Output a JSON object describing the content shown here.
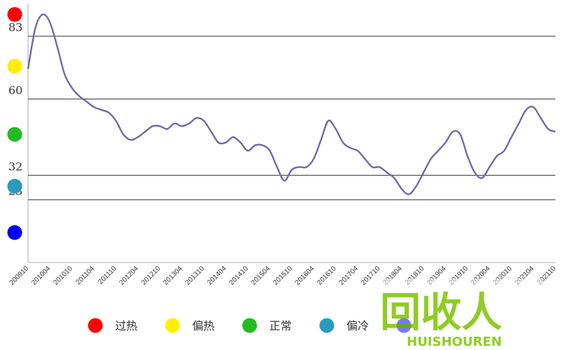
{
  "chart_data": {
    "type": "line",
    "title": "",
    "xlabel": "",
    "ylabel": "",
    "ylim": [
      0,
      95
    ],
    "x_ticks": [
      "200910",
      "201004",
      "201010",
      "201104",
      "201110",
      "201204",
      "201210",
      "201304",
      "201310",
      "201404",
      "201410",
      "201504",
      "201510",
      "201604",
      "201610",
      "201704",
      "201710",
      "201804",
      "201810",
      "201904",
      "201910",
      "202004",
      "202010",
      "202104",
      "202110"
    ],
    "y_ticks": [
      83,
      60,
      32,
      23
    ],
    "thresholds": [
      83,
      60,
      32,
      23
    ],
    "series": [
      {
        "name": "",
        "color": "#6b6ba5",
        "x": [
          "200910",
          "200912",
          "201002",
          "201004",
          "201006",
          "201008",
          "201010",
          "201012",
          "201102",
          "201104",
          "201106",
          "201108",
          "201110",
          "201112",
          "201202",
          "201204",
          "201206",
          "201208",
          "201210",
          "201212",
          "201302",
          "201304",
          "201306",
          "201308",
          "201310",
          "201312",
          "201402",
          "201404",
          "201406",
          "201408",
          "201410",
          "201412",
          "201502",
          "201504",
          "201506",
          "201508",
          "201510",
          "201512",
          "201602",
          "201604",
          "201606",
          "201608",
          "201610",
          "201612",
          "201702",
          "201704",
          "201706",
          "201708",
          "201710",
          "201712",
          "201802",
          "201804",
          "201806",
          "201808",
          "201810",
          "201812",
          "201902",
          "201904",
          "201906",
          "201908",
          "201910",
          "201912",
          "202002",
          "202004",
          "202006",
          "202008",
          "202010",
          "202012",
          "202102",
          "202104",
          "202106",
          "202108",
          "202110"
        ],
        "values": [
          71,
          86,
          91,
          88,
          79,
          69,
          64,
          61,
          59,
          57,
          56,
          55,
          52,
          47,
          45,
          46,
          48,
          50,
          50,
          49,
          51,
          50,
          51,
          53,
          52,
          48,
          44,
          44,
          46,
          44,
          41,
          43,
          43,
          41,
          35,
          30,
          34,
          35,
          35,
          38,
          45,
          52,
          49,
          44,
          42,
          41,
          38,
          35,
          35,
          33,
          31,
          27,
          25,
          28,
          33,
          38,
          41,
          44,
          48,
          47,
          39,
          33,
          31,
          35,
          39,
          41,
          46,
          51,
          56,
          57,
          53,
          49,
          48
        ]
      }
    ],
    "level_dots": [
      {
        "value": 91,
        "color": "#ff0000"
      },
      {
        "value": 72,
        "color": "#ffee00"
      },
      {
        "value": 47,
        "color": "#22bb22"
      },
      {
        "value": 28,
        "color": "#2a9bbd"
      },
      {
        "value": 11,
        "color": "#0000ee"
      }
    ],
    "legend": [
      {
        "label": "过热",
        "color": "#ff0000"
      },
      {
        "label": "偏热",
        "color": "#ffee00"
      },
      {
        "label": "正常",
        "color": "#22bb22"
      },
      {
        "label": "偏冷",
        "color": "#2a9bbd"
      },
      {
        "label": "",
        "color": "#0000ee"
      }
    ]
  },
  "watermark": {
    "cn": "回收人",
    "en": "HUISHOUREN",
    "color": "#7cc400"
  }
}
